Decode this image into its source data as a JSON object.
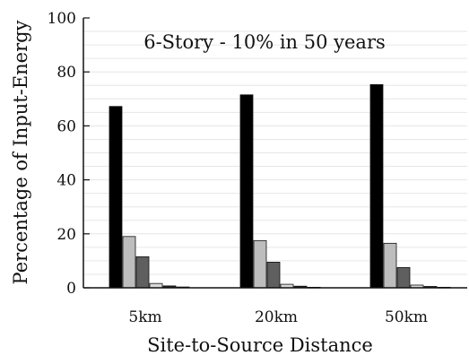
{
  "chart_data": {
    "type": "bar",
    "title": "6-Story - 10% in 50 years",
    "xlabel": "Site-to-Source Distance",
    "ylabel": "Percentage of Input-Energy",
    "categories": [
      "5km",
      "20km",
      "50km"
    ],
    "ylim": [
      0,
      100
    ],
    "yticks": [
      "0",
      "20",
      "40",
      "60",
      "80",
      "100"
    ],
    "grid": true,
    "series": [
      {
        "values": [
          67.2,
          71.5,
          75.3
        ],
        "color": "#000000"
      },
      {
        "values": [
          19.0,
          17.5,
          16.5
        ],
        "color": "#bdbdbd"
      },
      {
        "values": [
          11.5,
          9.5,
          7.5
        ],
        "color": "#5f5f5f"
      },
      {
        "values": [
          1.6,
          1.3,
          1.0
        ],
        "color": "#d9d9d9"
      },
      {
        "values": [
          0.7,
          0.6,
          0.5
        ],
        "color": "#222222"
      },
      {
        "values": [
          0.3,
          0.2,
          0.2
        ],
        "color": "#9a9a9a"
      }
    ]
  }
}
